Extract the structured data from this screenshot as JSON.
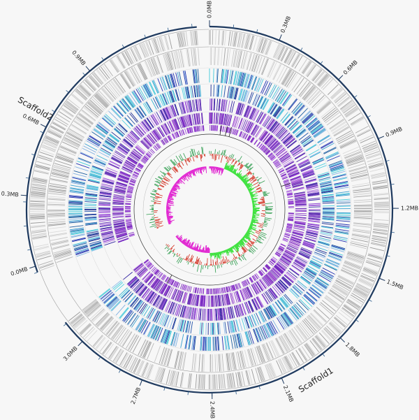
{
  "scaffolds": [
    {
      "name": "Scaffold1",
      "ticks": [
        "0.0MB",
        "0.3MB",
        "0.6MB",
        "0.9MB",
        "1.2MB",
        "1.5MB",
        "1.8MB",
        "2.1MB",
        "2.4MB",
        "2.7MB",
        "3.0MB"
      ]
    },
    {
      "name": "Scaffold2",
      "ticks": [
        "0.0MB",
        "0.3MB",
        "0.6MB",
        "0.9MB"
      ]
    }
  ]
}
